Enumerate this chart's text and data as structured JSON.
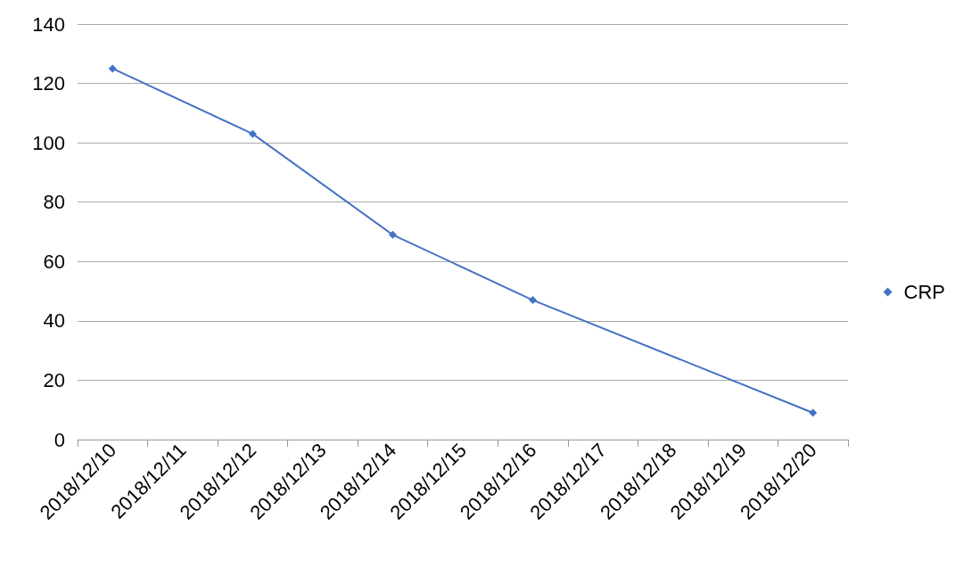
{
  "chart_data": {
    "type": "line",
    "categories": [
      "2018/12/10",
      "2018/12/11",
      "2018/12/12",
      "2018/12/13",
      "2018/12/14",
      "2018/12/15",
      "2018/12/16",
      "2018/12/17",
      "2018/12/18",
      "2018/12/19",
      "2018/12/20"
    ],
    "series": [
      {
        "name": "CRP",
        "color": "#4472c4",
        "x": [
          "2018/12/10",
          "2018/12/12",
          "2018/12/14",
          "2018/12/16",
          "2018/12/20"
        ],
        "values": [
          125,
          103,
          69,
          47,
          9
        ]
      }
    ],
    "ylim": [
      0,
      140
    ],
    "yticks": [
      0,
      20,
      40,
      60,
      80,
      100,
      120,
      140
    ],
    "grid": "y",
    "legend": "right",
    "marker": "diamond",
    "line_style": "solid"
  }
}
